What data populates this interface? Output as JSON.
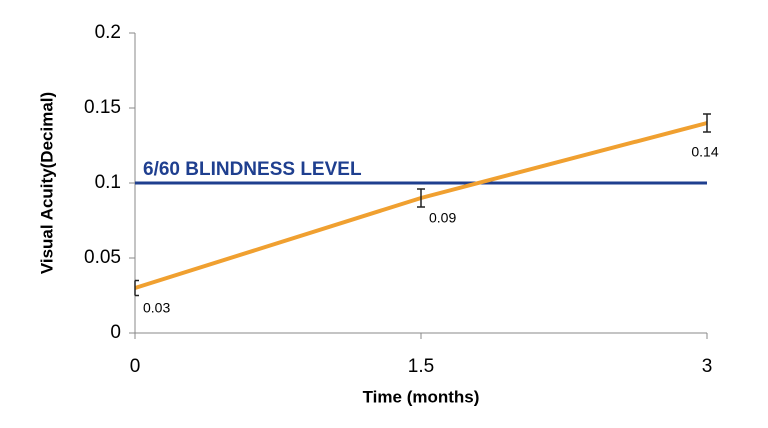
{
  "chart_data": {
    "type": "line",
    "x_label": "Time (months)",
    "y_label": "Visual Acuity(Decimal)",
    "x": [
      0,
      1.5,
      3
    ],
    "values": [
      0.03,
      0.09,
      0.14
    ],
    "errors": [
      0.005,
      0.006,
      0.006
    ],
    "color": "#f0a030",
    "xlim": [
      0,
      3
    ],
    "xticks": [
      0,
      1.5,
      3
    ],
    "ylim": [
      0,
      0.2
    ],
    "yticks": [
      0,
      0.05,
      0.1,
      0.15,
      0.2
    ],
    "grid": false,
    "reference_lines": [
      {
        "value": 0.1,
        "label": "6/60 BLINDNESS LEVEL",
        "color": "#1f3f8f"
      }
    ]
  }
}
